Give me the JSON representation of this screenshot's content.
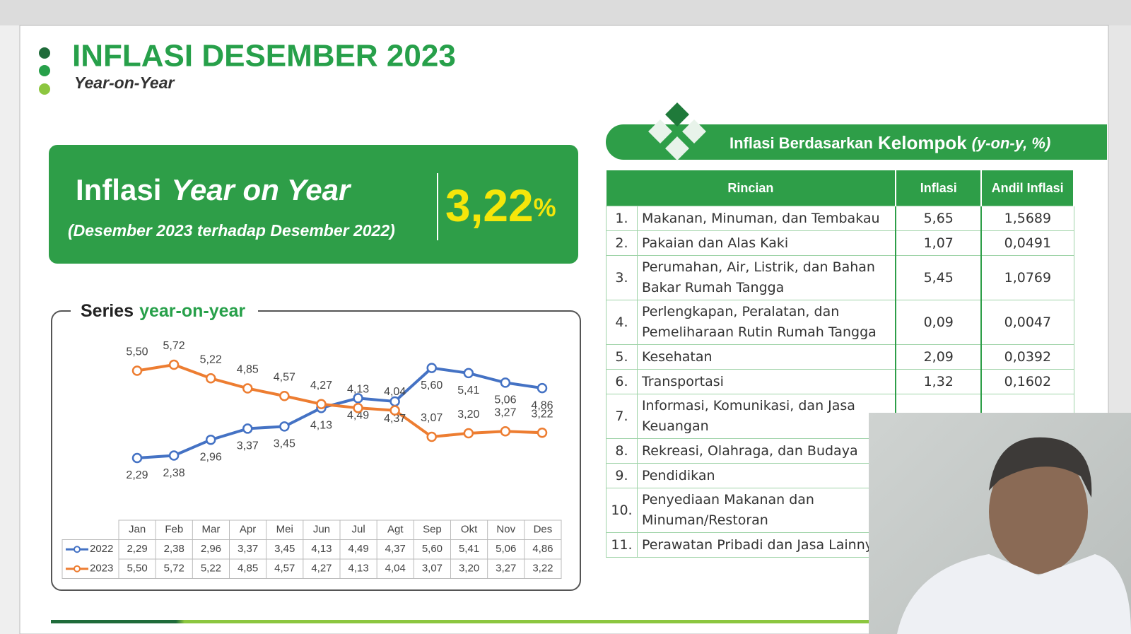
{
  "header": {
    "title": "INFLASI DESEMBER 2023",
    "subtitle": "Year-on-Year"
  },
  "headline": {
    "prefix": "Inflasi",
    "emphasis": "Year on Year",
    "period": "(Desember 2023 terhadap Desember 2022)",
    "value": "3,22",
    "unit": "%"
  },
  "chart_data": {
    "type": "line",
    "title": "Series",
    "title_emphasis": "year-on-year",
    "categories": [
      "Jan",
      "Feb",
      "Mar",
      "Apr",
      "Mei",
      "Jun",
      "Jul",
      "Agt",
      "Sep",
      "Okt",
      "Nov",
      "Des"
    ],
    "series": [
      {
        "name": "2022",
        "color": "#4472c4",
        "values": [
          2.29,
          2.38,
          2.96,
          3.37,
          3.45,
          4.13,
          4.49,
          4.37,
          5.6,
          5.41,
          5.06,
          4.86
        ],
        "value_labels": [
          "2,29",
          "2,38",
          "2,96",
          "3,37",
          "3,45",
          "4,13",
          "4,49",
          "4,37",
          "5,60",
          "5,41",
          "5,06",
          "4,86"
        ]
      },
      {
        "name": "2023",
        "color": "#ed7d31",
        "values": [
          5.5,
          5.72,
          5.22,
          4.85,
          4.57,
          4.27,
          4.13,
          4.04,
          3.07,
          3.2,
          3.27,
          3.22
        ],
        "value_labels": [
          "5,50",
          "5,72",
          "5,22",
          "4,85",
          "4,57",
          "4,27",
          "4,13",
          "4,04",
          "3,07",
          "3,20",
          "3,27",
          "3,22"
        ]
      }
    ]
  },
  "group_table": {
    "banner": {
      "lead": "Inflasi Berdasarkan",
      "strong": "Kelompok",
      "unit": "(y-on-y, %)"
    },
    "columns": [
      "Rincian",
      "Inflasi",
      "Andil Inflasi"
    ],
    "rows": [
      {
        "no": "1.",
        "rincian": "Makanan, Minuman, dan Tembakau",
        "inflasi": "5,65",
        "andil": "1,5689"
      },
      {
        "no": "2.",
        "rincian": "Pakaian dan Alas Kaki",
        "inflasi": "1,07",
        "andil": "0,0491"
      },
      {
        "no": "3.",
        "rincian": "Perumahan, Air, Listrik, dan Bahan Bakar Rumah Tangga",
        "inflasi": "5,45",
        "andil": "1,0769"
      },
      {
        "no": "4.",
        "rincian": "Perlengkapan, Peralatan, dan Pemeliharaan Rutin Rumah Tangga",
        "inflasi": "0,09",
        "andil": "0,0047"
      },
      {
        "no": "5.",
        "rincian": "Kesehatan",
        "inflasi": "2,09",
        "andil": "0,0392"
      },
      {
        "no": "6.",
        "rincian": "Transportasi",
        "inflasi": "1,32",
        "andil": "0,1602"
      },
      {
        "no": "7.",
        "rincian": "Informasi, Komunikasi, dan Jasa Keuangan"
      },
      {
        "no": "8.",
        "rincian": "Rekreasi, Olahraga, dan Budaya"
      },
      {
        "no": "9.",
        "rincian": "Pendidikan"
      },
      {
        "no": "10.",
        "rincian": "Penyediaan Makanan dan Minuman/Restoran"
      },
      {
        "no": "11.",
        "rincian": "Perawatan Pribadi dan Jasa Lainnya"
      }
    ]
  }
}
